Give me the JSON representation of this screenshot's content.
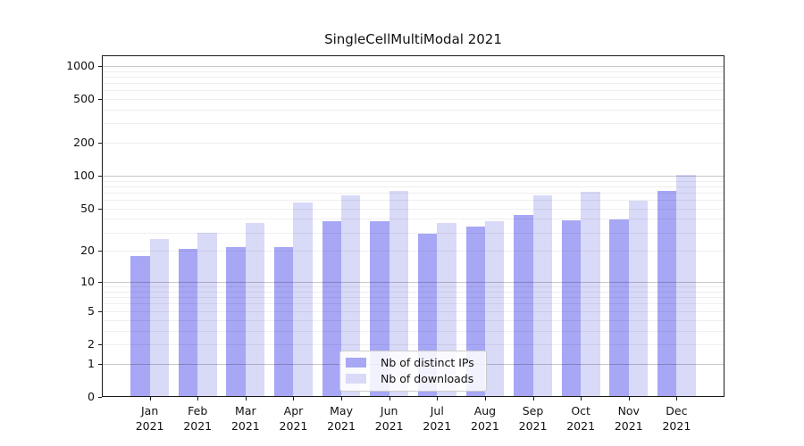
{
  "title": "SingleCellMultiModal 2021",
  "chart_data": {
    "type": "bar",
    "title": "SingleCellMultiModal 2021",
    "categories": [
      "Jan 2021",
      "Feb 2021",
      "Mar 2021",
      "Apr 2021",
      "May 2021",
      "Jun 2021",
      "Jul 2021",
      "Aug 2021",
      "Sep 2021",
      "Oct 2021",
      "Nov 2021",
      "Dec 2021"
    ],
    "series": [
      {
        "name": "Nb of distinct IPs",
        "color": "#a7a7f5",
        "values": [
          18,
          21,
          22,
          22,
          38,
          38,
          29,
          34,
          44,
          39,
          40,
          73
        ]
      },
      {
        "name": "Nb of downloads",
        "color": "#d9d9f8",
        "values": [
          26,
          30,
          37,
          57,
          66,
          73,
          37,
          38,
          66,
          71,
          59,
          103
        ]
      }
    ],
    "xlabel": "",
    "ylabel": "",
    "y_scale": "log1p",
    "y_ticks": [
      0,
      1,
      2,
      5,
      10,
      20,
      50,
      100,
      200,
      500,
      1000
    ],
    "ylim": [
      0,
      1250
    ],
    "grid": true,
    "legend_position": "lower center"
  },
  "colors": {
    "major_grid": "#c7c7c7",
    "minor_grid": "#efefef",
    "spine": "#1a1a1a",
    "text": "#111111",
    "legend_border": "#cccccc"
  }
}
